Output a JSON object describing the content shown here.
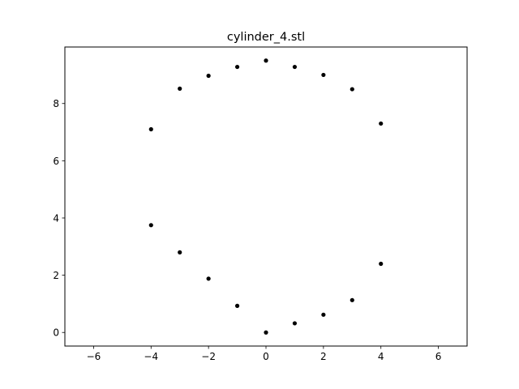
{
  "chart_data": {
    "type": "scatter",
    "title": "cylinder_4.stl",
    "xlabel": "",
    "ylabel": "",
    "xlim": [
      -7,
      7
    ],
    "ylim": [
      -0.475,
      9.975
    ],
    "x_ticks": [
      -6,
      -4,
      -2,
      0,
      2,
      4,
      6
    ],
    "x_tick_labels": [
      "−6",
      "−4",
      "−2",
      "0",
      "2",
      "4",
      "6"
    ],
    "y_ticks": [
      0,
      2,
      4,
      6,
      8
    ],
    "y_tick_labels": [
      "0",
      "2",
      "4",
      "6",
      "8"
    ],
    "grid": false,
    "marker_color": "#000000",
    "series": [
      {
        "points": [
          [
            0,
            9.5
          ],
          [
            1,
            9.28
          ],
          [
            -1,
            9.28
          ],
          [
            2,
            9.0
          ],
          [
            -2,
            8.97
          ],
          [
            3,
            8.5
          ],
          [
            -3,
            8.52
          ],
          [
            4,
            7.3
          ],
          [
            -4,
            7.1
          ],
          [
            -4,
            3.75
          ],
          [
            -3,
            2.8
          ],
          [
            -2,
            1.88
          ],
          [
            -1,
            0.93
          ],
          [
            0,
            0.0
          ],
          [
            1,
            0.32
          ],
          [
            2,
            0.62
          ],
          [
            3,
            1.13
          ],
          [
            4,
            2.4
          ]
        ]
      }
    ]
  }
}
